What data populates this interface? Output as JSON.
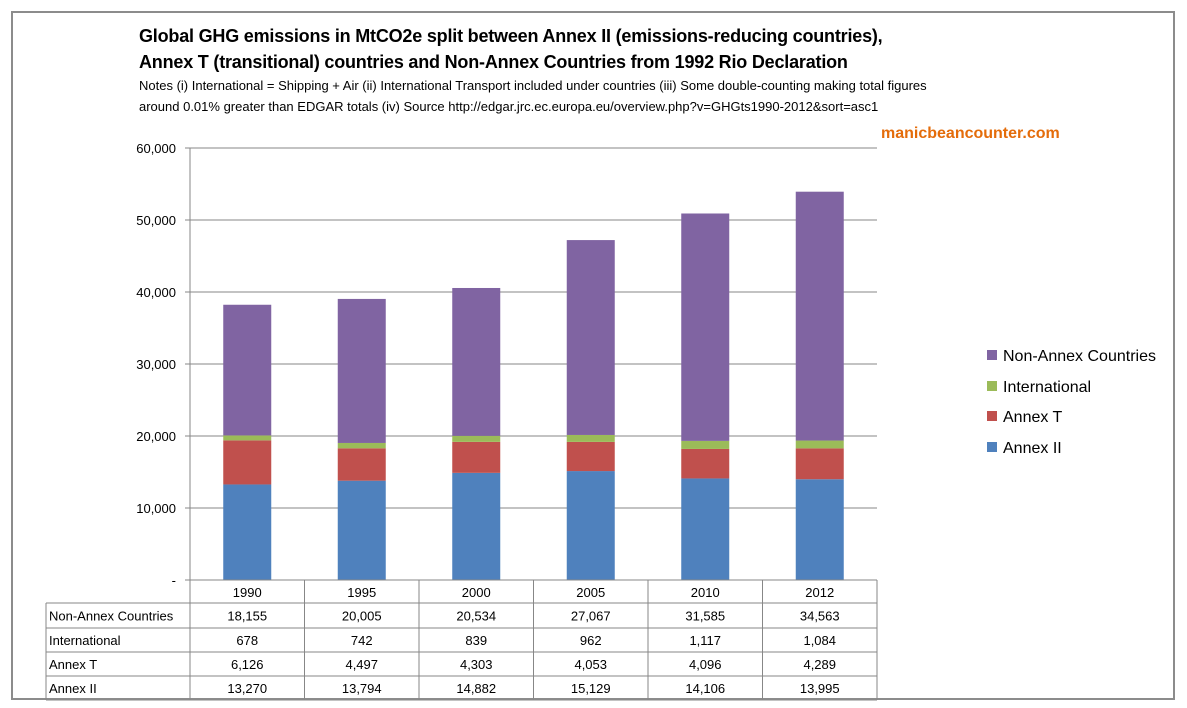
{
  "title_line1": "Global GHG emissions in MtCO2e split between Annex II (emissions-reducing countries),",
  "title_line2": "Annex T (transitional) countries and Non-Annex Countries from 1992 Rio Declaration",
  "notes_line1": "Notes (i) International = Shipping + Air (ii) International Transport included under countries (iii) Some double-counting making total figures",
  "notes_line2": "around 0.01% greater than EDGAR totals (iv) Source http://edgar.jrc.ec.europa.eu/overview.php?v=GHGts1990-2012&sort=asc1",
  "brand": "manicbeancounter.com",
  "chart_data": {
    "type": "bar",
    "stacked": true,
    "title": "Global GHG emissions in MtCO2e split between Annex II (emissions-reducing countries), Annex T (transitional) countries and Non-Annex Countries from 1992 Rio Declaration",
    "categories": [
      "1990",
      "1995",
      "2000",
      "2005",
      "2010",
      "2012"
    ],
    "series": [
      {
        "name": "Annex II",
        "color": "#4f81bd",
        "values": [
          13270,
          13794,
          14882,
          15129,
          14106,
          13995
        ],
        "labels": [
          "13,270",
          "13,794",
          "14,882",
          "15,129",
          "14,106",
          "13,995"
        ]
      },
      {
        "name": "Annex T",
        "color": "#c0504d",
        "values": [
          6126,
          4497,
          4303,
          4053,
          4096,
          4289
        ],
        "labels": [
          "6,126",
          "4,497",
          "4,303",
          "4,053",
          "4,096",
          "4,289"
        ]
      },
      {
        "name": "International",
        "color": "#9bbb59",
        "values": [
          678,
          742,
          839,
          962,
          1117,
          1084
        ],
        "labels": [
          "678",
          "742",
          "839",
          "962",
          "1,117",
          "1,084"
        ]
      },
      {
        "name": "Non-Annex Countries",
        "color": "#8064a2",
        "values": [
          18155,
          20005,
          20534,
          27067,
          31585,
          34563
        ],
        "labels": [
          "18,155",
          "20,005",
          "20,534",
          "27,067",
          "31,585",
          "34,563"
        ]
      }
    ],
    "ylim": [
      0,
      60000
    ],
    "yticks": [
      0,
      10000,
      20000,
      30000,
      40000,
      50000,
      60000
    ],
    "ytick_labels": [
      "-",
      "10,000",
      "20,000",
      "30,000",
      "40,000",
      "50,000",
      "60,000"
    ],
    "grid": true,
    "legend": "right",
    "data_table": true
  }
}
